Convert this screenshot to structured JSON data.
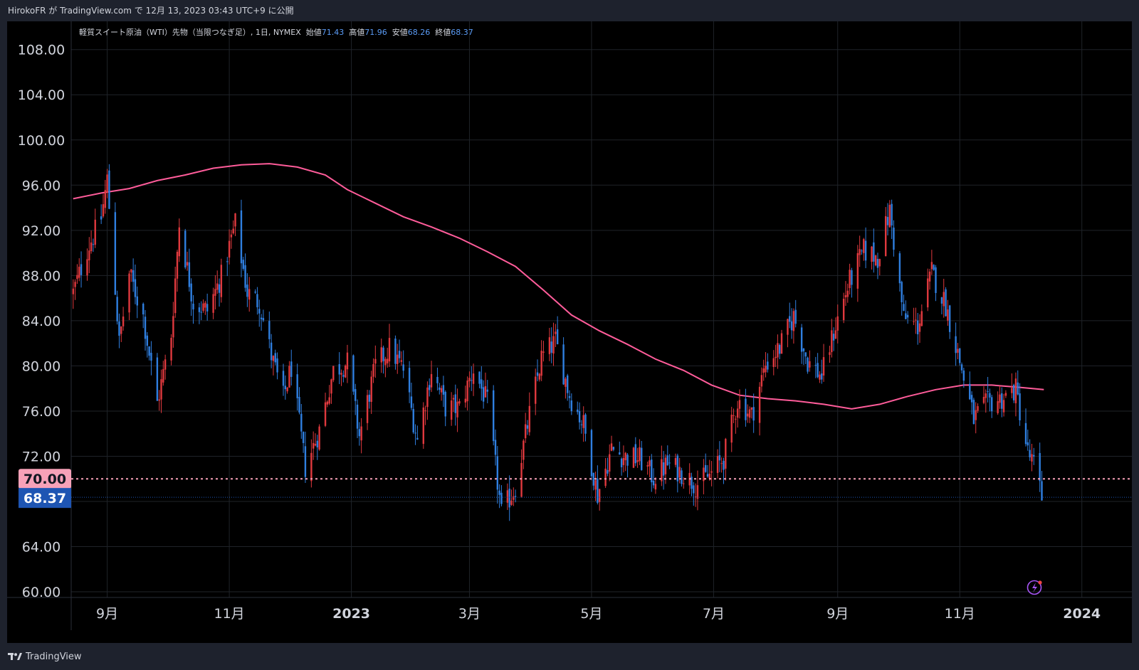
{
  "header": {
    "published_text": "HirokoFR が TradingView.com で 12月 13, 2023 03:43 UTC+9 に公開"
  },
  "legend": {
    "symbol": "軽質スイート原油（WTI）先物（当限つなぎ足）, 1日, NYMEX",
    "open_label": "始値",
    "open_value": "71.43",
    "high_label": "高値",
    "high_value": "71.96",
    "low_label": "安値",
    "low_value": "68.26",
    "close_label": "終値",
    "close_value": "68.37"
  },
  "footer": {
    "brand": "TradingView"
  },
  "colors": {
    "background": "#000000",
    "frame": "#1e222d",
    "grid": "#1f2329",
    "up_candle": "#e0393e",
    "down_candle": "#2f7fe0",
    "moving_average": "#ff5c9a",
    "horizontal_line": "#f7a1b8",
    "price_badge": "#1e55b3",
    "level_badge": "#f7a1b8"
  },
  "chart_data": {
    "type": "candlestick",
    "y_axis": {
      "ticks": [
        "108.00",
        "104.00",
        "100.00",
        "96.00",
        "92.00",
        "88.00",
        "84.00",
        "80.00",
        "76.00",
        "72.00",
        "64.00",
        "60.00"
      ],
      "tick_values": [
        108,
        104,
        100,
        96,
        92,
        88,
        84,
        80,
        76,
        72,
        64,
        60
      ],
      "ylim": [
        59.5,
        110.5
      ]
    },
    "x_axis": {
      "ticks": [
        {
          "label": "9月",
          "bold": false
        },
        {
          "label": "11月",
          "bold": false
        },
        {
          "label": "2023",
          "bold": true
        },
        {
          "label": "3月",
          "bold": false
        },
        {
          "label": "5月",
          "bold": false
        },
        {
          "label": "7月",
          "bold": false
        },
        {
          "label": "9月",
          "bold": false
        },
        {
          "label": "11月",
          "bold": false
        },
        {
          "label": "2024",
          "bold": true
        }
      ],
      "tick_dates": [
        "2022-09-01",
        "2022-11-01",
        "2023-01-01",
        "2023-03-01",
        "2023-05-01",
        "2023-07-01",
        "2023-09-01",
        "2023-11-01",
        "2024-01-01"
      ],
      "xlim": [
        "2022-08-14",
        "2024-01-26"
      ]
    },
    "horizontal_level": {
      "value": 70.0,
      "label": "70.00"
    },
    "last_price": {
      "value": 68.37,
      "label": "68.37"
    },
    "moving_average": [
      [
        "2022-08-15",
        94.8
      ],
      [
        "2022-08-29",
        95.3
      ],
      [
        "2022-09-12",
        95.7
      ],
      [
        "2022-09-26",
        96.4
      ],
      [
        "2022-10-10",
        96.9
      ],
      [
        "2022-10-24",
        97.5
      ],
      [
        "2022-11-07",
        97.8
      ],
      [
        "2022-11-21",
        97.9
      ],
      [
        "2022-12-05",
        97.6
      ],
      [
        "2022-12-19",
        96.9
      ],
      [
        "2022-12-30",
        95.6
      ],
      [
        "2023-01-13",
        94.4
      ],
      [
        "2023-01-27",
        93.2
      ],
      [
        "2023-02-10",
        92.3
      ],
      [
        "2023-02-24",
        91.3
      ],
      [
        "2023-03-10",
        90.1
      ],
      [
        "2023-03-24",
        88.8
      ],
      [
        "2023-04-07",
        86.7
      ],
      [
        "2023-04-21",
        84.5
      ],
      [
        "2023-05-05",
        83.1
      ],
      [
        "2023-05-19",
        81.9
      ],
      [
        "2023-06-02",
        80.6
      ],
      [
        "2023-06-16",
        79.6
      ],
      [
        "2023-06-30",
        78.3
      ],
      [
        "2023-07-14",
        77.4
      ],
      [
        "2023-07-28",
        77.1
      ],
      [
        "2023-08-11",
        76.9
      ],
      [
        "2023-08-25",
        76.6
      ],
      [
        "2023-09-08",
        76.2
      ],
      [
        "2023-09-22",
        76.6
      ],
      [
        "2023-10-06",
        77.3
      ],
      [
        "2023-10-20",
        77.9
      ],
      [
        "2023-11-03",
        78.3
      ],
      [
        "2023-11-17",
        78.3
      ],
      [
        "2023-12-01",
        78.1
      ],
      [
        "2023-12-13",
        77.9
      ]
    ],
    "close_path": [
      [
        "2022-08-15",
        86.5
      ],
      [
        "2022-08-22",
        90.3
      ],
      [
        "2022-08-29",
        93.1
      ],
      [
        "2022-09-01",
        96.5
      ],
      [
        "2022-09-07",
        82.0
      ],
      [
        "2022-09-12",
        88.2
      ],
      [
        "2022-09-19",
        84.4
      ],
      [
        "2022-09-26",
        76.7
      ],
      [
        "2022-10-03",
        82.8
      ],
      [
        "2022-10-07",
        92.6
      ],
      [
        "2022-10-14",
        85.6
      ],
      [
        "2022-10-21",
        84.9
      ],
      [
        "2022-10-28",
        87.9
      ],
      [
        "2022-11-04",
        92.6
      ],
      [
        "2022-11-10",
        86.5
      ],
      [
        "2022-11-16",
        85.6
      ],
      [
        "2022-11-22",
        80.9
      ],
      [
        "2022-11-28",
        77.2
      ],
      [
        "2022-12-02",
        79.9
      ],
      [
        "2022-12-09",
        71.0
      ],
      [
        "2022-12-16",
        74.3
      ],
      [
        "2022-12-23",
        79.6
      ],
      [
        "2022-12-30",
        80.3
      ],
      [
        "2023-01-05",
        73.8
      ],
      [
        "2023-01-13",
        79.9
      ],
      [
        "2023-01-20",
        81.6
      ],
      [
        "2023-01-27",
        79.7
      ],
      [
        "2023-02-03",
        73.4
      ],
      [
        "2023-02-10",
        79.7
      ],
      [
        "2023-02-17",
        76.3
      ],
      [
        "2023-02-24",
        76.3
      ],
      [
        "2023-03-03",
        79.7
      ],
      [
        "2023-03-10",
        76.7
      ],
      [
        "2023-03-17",
        66.9
      ],
      [
        "2023-03-24",
        69.3
      ],
      [
        "2023-03-31",
        75.7
      ],
      [
        "2023-04-06",
        80.7
      ],
      [
        "2023-04-13",
        82.2
      ],
      [
        "2023-04-20",
        77.4
      ],
      [
        "2023-04-27",
        74.8
      ],
      [
        "2023-05-04",
        68.6
      ],
      [
        "2023-05-11",
        72.6
      ],
      [
        "2023-05-18",
        71.9
      ],
      [
        "2023-05-25",
        71.8
      ],
      [
        "2023-06-01",
        70.1
      ],
      [
        "2023-06-08",
        71.3
      ],
      [
        "2023-06-15",
        70.6
      ],
      [
        "2023-06-22",
        69.5
      ],
      [
        "2023-06-29",
        70.3
      ],
      [
        "2023-07-06",
        71.8
      ],
      [
        "2023-07-13",
        76.9
      ],
      [
        "2023-07-20",
        75.6
      ],
      [
        "2023-07-27",
        80.1
      ],
      [
        "2023-08-03",
        81.6
      ],
      [
        "2023-08-10",
        84.4
      ],
      [
        "2023-08-17",
        80.4
      ],
      [
        "2023-08-24",
        79.1
      ],
      [
        "2023-08-31",
        83.6
      ],
      [
        "2023-09-07",
        87.5
      ],
      [
        "2023-09-14",
        90.2
      ],
      [
        "2023-09-21",
        89.6
      ],
      [
        "2023-09-27",
        93.7
      ],
      [
        "2023-10-04",
        84.2
      ],
      [
        "2023-10-11",
        83.5
      ],
      [
        "2023-10-18",
        88.3
      ],
      [
        "2023-10-25",
        85.4
      ],
      [
        "2023-11-01",
        80.4
      ],
      [
        "2023-11-08",
        75.3
      ],
      [
        "2023-11-15",
        76.7
      ],
      [
        "2023-11-22",
        77.1
      ],
      [
        "2023-11-29",
        77.9
      ],
      [
        "2023-12-05",
        72.3
      ],
      [
        "2023-12-08",
        71.2
      ],
      [
        "2023-12-12",
        68.37
      ]
    ]
  }
}
